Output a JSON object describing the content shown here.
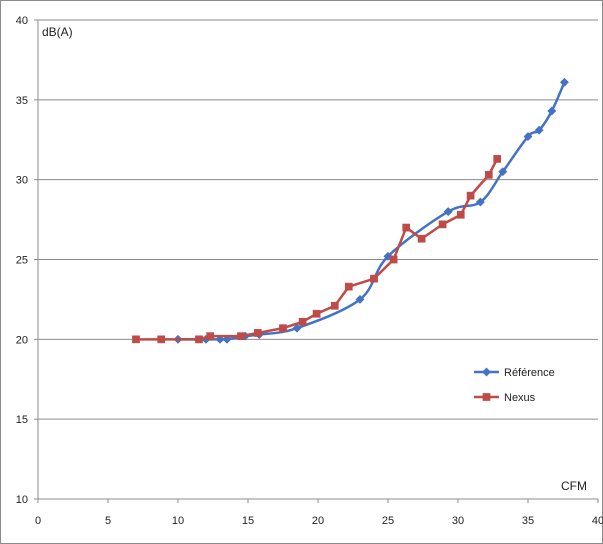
{
  "chart_data": {
    "type": "line",
    "title": "",
    "xlabel": "CFM",
    "ylabel": "dB(A)",
    "xlim": [
      0,
      40
    ],
    "ylim": [
      10,
      40
    ],
    "xticks": [
      "0",
      "5",
      "10",
      "15",
      "20",
      "25",
      "30",
      "35",
      "40"
    ],
    "yticks": [
      "10",
      "15",
      "20",
      "25",
      "30",
      "35",
      "40"
    ],
    "grid": "horizontal",
    "legend_position": "right",
    "series": [
      {
        "name": "Référence",
        "color": "#4472C4",
        "marker": "diamond",
        "smooth": true,
        "x": [
          10.0,
          12.0,
          13.0,
          13.5,
          14.8,
          15.8,
          18.5,
          23.0,
          25.0,
          29.3,
          31.6,
          33.2,
          35.0,
          35.8,
          36.7,
          37.6
        ],
        "y": [
          20.0,
          20.0,
          20.0,
          20.0,
          20.2,
          20.3,
          20.7,
          22.5,
          25.2,
          28.0,
          28.6,
          30.5,
          32.7,
          33.1,
          34.3,
          36.1
        ]
      },
      {
        "name": "Nexus",
        "color": "#BE4B48",
        "marker": "square",
        "smooth": false,
        "x": [
          7.0,
          8.8,
          11.5,
          12.3,
          14.5,
          15.7,
          17.5,
          18.9,
          19.9,
          21.2,
          22.2,
          24.0,
          25.4,
          26.3,
          27.4,
          28.9,
          30.2,
          30.9,
          32.2,
          32.8
        ],
        "y": [
          20.0,
          20.0,
          20.0,
          20.2,
          20.2,
          20.4,
          20.7,
          21.1,
          21.6,
          22.1,
          23.3,
          23.8,
          25.0,
          27.0,
          26.3,
          27.2,
          27.8,
          29.0,
          30.3,
          31.3
        ]
      }
    ]
  }
}
